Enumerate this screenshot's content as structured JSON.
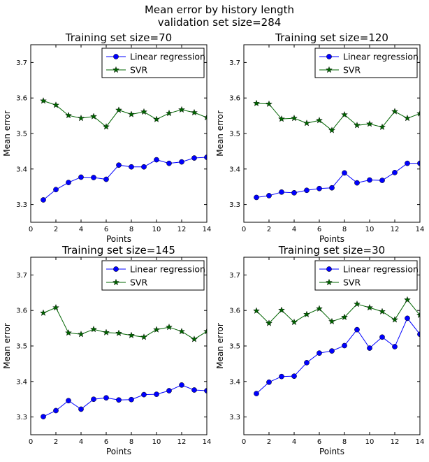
{
  "figure": {
    "title_line1": "Mean error by history length",
    "title_line2": "validation set size=284"
  },
  "chart_data": [
    {
      "type": "line",
      "title": "Training set size=70",
      "xlabel": "Points",
      "ylabel": "Mean error",
      "xlim": [
        0,
        14
      ],
      "ylim": [
        3.25,
        3.75
      ],
      "xticks": [
        0,
        2,
        4,
        6,
        8,
        10,
        12,
        14
      ],
      "yticks": [
        3.3,
        3.4,
        3.5,
        3.6,
        3.7
      ],
      "legend_loc": "upper right",
      "x": [
        1,
        2,
        3,
        4,
        5,
        6,
        7,
        8,
        9,
        10,
        11,
        12,
        13,
        14
      ],
      "series": [
        {
          "name": "Linear regression",
          "color": "#0000ff",
          "marker": "circle",
          "values": [
            3.313,
            3.342,
            3.362,
            3.377,
            3.376,
            3.371,
            3.411,
            3.406,
            3.406,
            3.426,
            3.416,
            3.42,
            3.431,
            3.433
          ]
        },
        {
          "name": "SVR",
          "color": "#006400",
          "marker": "star",
          "values": [
            3.592,
            3.58,
            3.551,
            3.543,
            3.548,
            3.519,
            3.566,
            3.554,
            3.561,
            3.54,
            3.557,
            3.567,
            3.559,
            3.545
          ]
        }
      ]
    },
    {
      "type": "line",
      "title": "Training set size=120",
      "xlabel": "Points",
      "ylabel": "Mean error",
      "xlim": [
        0,
        14
      ],
      "ylim": [
        3.25,
        3.75
      ],
      "xticks": [
        0,
        2,
        4,
        6,
        8,
        10,
        12,
        14
      ],
      "yticks": [
        3.3,
        3.4,
        3.5,
        3.6,
        3.7
      ],
      "legend_loc": "upper right",
      "x": [
        1,
        2,
        3,
        4,
        5,
        6,
        7,
        8,
        9,
        10,
        11,
        12,
        13,
        14
      ],
      "series": [
        {
          "name": "Linear regression",
          "color": "#0000ff",
          "marker": "circle",
          "values": [
            3.32,
            3.325,
            3.335,
            3.333,
            3.34,
            3.345,
            3.347,
            3.389,
            3.361,
            3.369,
            3.368,
            3.39,
            3.416,
            3.416
          ]
        },
        {
          "name": "SVR",
          "color": "#006400",
          "marker": "star",
          "values": [
            3.585,
            3.583,
            3.541,
            3.543,
            3.529,
            3.537,
            3.509,
            3.553,
            3.523,
            3.527,
            3.518,
            3.562,
            3.543,
            3.556
          ]
        }
      ]
    },
    {
      "type": "line",
      "title": "Training set size=145",
      "xlabel": "Points",
      "ylabel": "Mean error",
      "xlim": [
        0,
        14
      ],
      "ylim": [
        3.25,
        3.75
      ],
      "xticks": [
        0,
        2,
        4,
        6,
        8,
        10,
        12,
        14
      ],
      "yticks": [
        3.3,
        3.4,
        3.5,
        3.6,
        3.7
      ],
      "legend_loc": "upper right",
      "x": [
        1,
        2,
        3,
        4,
        5,
        6,
        7,
        8,
        9,
        10,
        11,
        12,
        13,
        14
      ],
      "series": [
        {
          "name": "Linear regression",
          "color": "#0000ff",
          "marker": "circle",
          "values": [
            3.301,
            3.318,
            3.346,
            3.322,
            3.35,
            3.354,
            3.348,
            3.349,
            3.363,
            3.364,
            3.374,
            3.39,
            3.376,
            3.374
          ]
        },
        {
          "name": "SVR",
          "color": "#006400",
          "marker": "star",
          "values": [
            3.593,
            3.608,
            3.537,
            3.533,
            3.547,
            3.538,
            3.536,
            3.53,
            3.525,
            3.546,
            3.553,
            3.541,
            3.519,
            3.541
          ]
        }
      ]
    },
    {
      "type": "line",
      "title": "Training set size=30",
      "xlabel": "Points",
      "ylabel": "Mean error",
      "xlim": [
        0,
        14
      ],
      "ylim": [
        3.25,
        3.75
      ],
      "xticks": [
        0,
        2,
        4,
        6,
        8,
        10,
        12,
        14
      ],
      "yticks": [
        3.3,
        3.4,
        3.5,
        3.6,
        3.7
      ],
      "legend_loc": "upper right",
      "x": [
        1,
        2,
        3,
        4,
        5,
        6,
        7,
        8,
        9,
        10,
        11,
        12,
        13,
        14
      ],
      "series": [
        {
          "name": "Linear regression",
          "color": "#0000ff",
          "marker": "circle",
          "values": [
            3.366,
            3.398,
            3.414,
            3.415,
            3.453,
            3.48,
            3.486,
            3.501,
            3.546,
            3.494,
            3.525,
            3.498,
            3.578,
            3.533
          ]
        },
        {
          "name": "SVR",
          "color": "#006400",
          "marker": "star",
          "values": [
            3.599,
            3.564,
            3.601,
            3.567,
            3.589,
            3.605,
            3.569,
            3.581,
            3.618,
            3.608,
            3.597,
            3.574,
            3.63,
            3.587
          ]
        }
      ]
    }
  ]
}
